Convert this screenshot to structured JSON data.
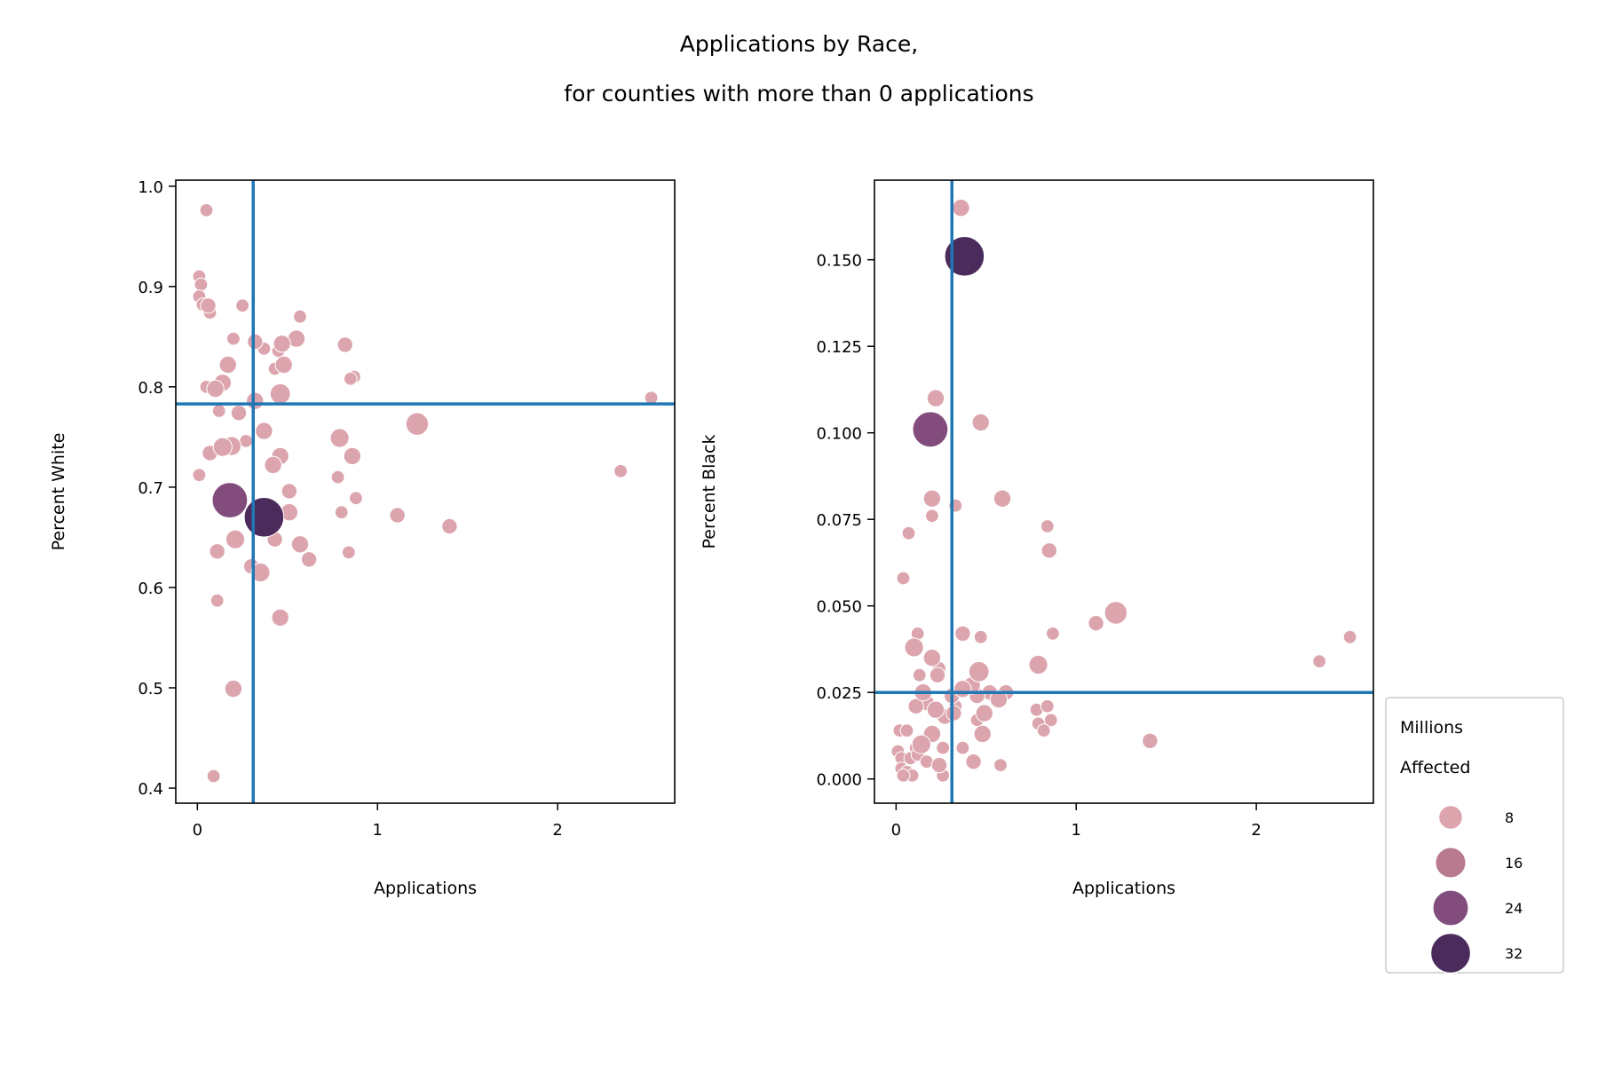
{
  "chart_data": {
    "title_lines": [
      "Applications by Race,",
      "for counties with more than 0 applications"
    ],
    "type": "scatter",
    "legend": {
      "title_lines": [
        "Millions",
        "Affected"
      ],
      "placement": "right",
      "items": [
        {
          "label": "8",
          "size": 8,
          "color": "#dca5ae"
        },
        {
          "label": "16",
          "size": 16,
          "color": "#b9798f"
        },
        {
          "label": "24",
          "size": 24,
          "color": "#824c7d"
        },
        {
          "label": "32",
          "size": 32,
          "color": "#4b2b5c"
        }
      ]
    },
    "panels": [
      {
        "xlabel": "Applications",
        "ylabel": "Percent White",
        "xlim": [
          -0.12,
          2.65
        ],
        "ylim": [
          0.385,
          1.006
        ],
        "xticks": [
          {
            "v": 0,
            "label": "0"
          },
          {
            "v": 1,
            "label": "1"
          },
          {
            "v": 2,
            "label": "2"
          }
        ],
        "yticks": [
          {
            "v": 0.4,
            "label": "0.4"
          },
          {
            "v": 0.5,
            "label": "0.5"
          },
          {
            "v": 0.6,
            "label": "0.6"
          },
          {
            "v": 0.7,
            "label": "0.7"
          },
          {
            "v": 0.8,
            "label": "0.8"
          },
          {
            "v": 0.9,
            "label": "0.9"
          },
          {
            "v": 1.0,
            "label": "1.0"
          }
        ],
        "vline": 0.31,
        "hline": 0.783,
        "line_color": "#1f77b4",
        "points": [
          {
            "x": 0.05,
            "y": 0.976,
            "s": 1
          },
          {
            "x": 0.01,
            "y": 0.91,
            "s": 1
          },
          {
            "x": 0.02,
            "y": 0.902,
            "s": 1
          },
          {
            "x": 0.01,
            "y": 0.89,
            "s": 1
          },
          {
            "x": 0.03,
            "y": 0.882,
            "s": 1
          },
          {
            "x": 0.06,
            "y": 0.881,
            "s": 2
          },
          {
            "x": 0.07,
            "y": 0.874,
            "s": 1
          },
          {
            "x": 0.25,
            "y": 0.881,
            "s": 1
          },
          {
            "x": 0.57,
            "y": 0.87,
            "s": 1
          },
          {
            "x": 0.55,
            "y": 0.848,
            "s": 3
          },
          {
            "x": 0.47,
            "y": 0.843,
            "s": 3
          },
          {
            "x": 0.32,
            "y": 0.845,
            "s": 2
          },
          {
            "x": 0.2,
            "y": 0.848,
            "s": 1
          },
          {
            "x": 0.82,
            "y": 0.842,
            "s": 2
          },
          {
            "x": 0.37,
            "y": 0.838,
            "s": 1
          },
          {
            "x": 0.45,
            "y": 0.836,
            "s": 1
          },
          {
            "x": 0.17,
            "y": 0.822,
            "s": 3
          },
          {
            "x": 0.48,
            "y": 0.822,
            "s": 3
          },
          {
            "x": 0.43,
            "y": 0.818,
            "s": 1
          },
          {
            "x": 0.87,
            "y": 0.81,
            "s": 1
          },
          {
            "x": 0.85,
            "y": 0.808,
            "s": 1
          },
          {
            "x": 0.14,
            "y": 0.804,
            "s": 3
          },
          {
            "x": 0.05,
            "y": 0.8,
            "s": 1
          },
          {
            "x": 0.1,
            "y": 0.798,
            "s": 3
          },
          {
            "x": 0.46,
            "y": 0.793,
            "s": 5
          },
          {
            "x": 0.32,
            "y": 0.786,
            "s": 3
          },
          {
            "x": 2.52,
            "y": 0.789,
            "s": 1
          },
          {
            "x": 0.12,
            "y": 0.776,
            "s": 1
          },
          {
            "x": 0.23,
            "y": 0.774,
            "s": 2
          },
          {
            "x": 0.37,
            "y": 0.756,
            "s": 3
          },
          {
            "x": 0.79,
            "y": 0.749,
            "s": 4
          },
          {
            "x": 1.22,
            "y": 0.763,
            "s": 7
          },
          {
            "x": 0.27,
            "y": 0.746,
            "s": 1
          },
          {
            "x": 0.19,
            "y": 0.741,
            "s": 4
          },
          {
            "x": 0.14,
            "y": 0.74,
            "s": 4
          },
          {
            "x": 0.07,
            "y": 0.734,
            "s": 2
          },
          {
            "x": 0.46,
            "y": 0.731,
            "s": 3
          },
          {
            "x": 0.86,
            "y": 0.731,
            "s": 3
          },
          {
            "x": 0.42,
            "y": 0.722,
            "s": 3
          },
          {
            "x": 0.01,
            "y": 0.712,
            "s": 1
          },
          {
            "x": 0.78,
            "y": 0.71,
            "s": 1
          },
          {
            "x": 0.51,
            "y": 0.696,
            "s": 2
          },
          {
            "x": 2.35,
            "y": 0.716,
            "s": 1
          },
          {
            "x": 0.88,
            "y": 0.689,
            "s": 1
          },
          {
            "x": 0.18,
            "y": 0.687,
            "s": 24
          },
          {
            "x": 0.37,
            "y": 0.67,
            "s": 32
          },
          {
            "x": 0.51,
            "y": 0.675,
            "s": 3
          },
          {
            "x": 0.8,
            "y": 0.675,
            "s": 1
          },
          {
            "x": 1.11,
            "y": 0.672,
            "s": 2
          },
          {
            "x": 1.4,
            "y": 0.661,
            "s": 2
          },
          {
            "x": 0.21,
            "y": 0.648,
            "s": 4
          },
          {
            "x": 0.11,
            "y": 0.636,
            "s": 2
          },
          {
            "x": 0.57,
            "y": 0.643,
            "s": 3
          },
          {
            "x": 0.84,
            "y": 0.635,
            "s": 1
          },
          {
            "x": 0.62,
            "y": 0.628,
            "s": 2
          },
          {
            "x": 0.3,
            "y": 0.621,
            "s": 2
          },
          {
            "x": 0.35,
            "y": 0.615,
            "s": 4
          },
          {
            "x": 0.43,
            "y": 0.648,
            "s": 2
          },
          {
            "x": 0.11,
            "y": 0.587,
            "s": 1
          },
          {
            "x": 0.46,
            "y": 0.57,
            "s": 3
          },
          {
            "x": 0.2,
            "y": 0.499,
            "s": 3
          },
          {
            "x": 0.09,
            "y": 0.412,
            "s": 1
          }
        ]
      },
      {
        "xlabel": "Applications",
        "ylabel": "Percent Black",
        "xlim": [
          -0.12,
          2.65
        ],
        "ylim": [
          -0.007,
          0.173
        ],
        "xticks": [
          {
            "v": 0,
            "label": "0"
          },
          {
            "v": 1,
            "label": "1"
          },
          {
            "v": 2,
            "label": "2"
          }
        ],
        "yticks": [
          {
            "v": 0.0,
            "label": "0.000"
          },
          {
            "v": 0.025,
            "label": "0.025"
          },
          {
            "v": 0.05,
            "label": "0.050"
          },
          {
            "v": 0.075,
            "label": "0.075"
          },
          {
            "v": 0.1,
            "label": "0.100"
          },
          {
            "v": 0.125,
            "label": "0.125"
          },
          {
            "v": 0.15,
            "label": "0.150"
          }
        ],
        "vline": 0.31,
        "hline": 0.025,
        "line_color": "#1f77b4",
        "points": [
          {
            "x": 0.36,
            "y": 0.165,
            "s": 3
          },
          {
            "x": 0.38,
            "y": 0.151,
            "s": 32
          },
          {
            "x": 0.19,
            "y": 0.101,
            "s": 24
          },
          {
            "x": 0.22,
            "y": 0.11,
            "s": 3
          },
          {
            "x": 0.47,
            "y": 0.103,
            "s": 3
          },
          {
            "x": 0.2,
            "y": 0.081,
            "s": 3
          },
          {
            "x": 0.59,
            "y": 0.081,
            "s": 3
          },
          {
            "x": 0.33,
            "y": 0.079,
            "s": 1
          },
          {
            "x": 0.2,
            "y": 0.076,
            "s": 1
          },
          {
            "x": 0.07,
            "y": 0.071,
            "s": 1
          },
          {
            "x": 0.84,
            "y": 0.073,
            "s": 1
          },
          {
            "x": 0.85,
            "y": 0.066,
            "s": 2
          },
          {
            "x": 0.04,
            "y": 0.058,
            "s": 1
          },
          {
            "x": 1.22,
            "y": 0.048,
            "s": 7
          },
          {
            "x": 1.11,
            "y": 0.045,
            "s": 2
          },
          {
            "x": 2.52,
            "y": 0.041,
            "s": 1
          },
          {
            "x": 0.87,
            "y": 0.042,
            "s": 1
          },
          {
            "x": 0.12,
            "y": 0.042,
            "s": 1
          },
          {
            "x": 0.37,
            "y": 0.042,
            "s": 2
          },
          {
            "x": 0.47,
            "y": 0.041,
            "s": 1
          },
          {
            "x": 0.1,
            "y": 0.038,
            "s": 4
          },
          {
            "x": 0.2,
            "y": 0.035,
            "s": 3
          },
          {
            "x": 2.35,
            "y": 0.034,
            "s": 1
          },
          {
            "x": 0.79,
            "y": 0.033,
            "s": 4
          },
          {
            "x": 0.46,
            "y": 0.031,
            "s": 5
          },
          {
            "x": 0.24,
            "y": 0.032,
            "s": 1
          },
          {
            "x": 0.23,
            "y": 0.03,
            "s": 2
          },
          {
            "x": 0.13,
            "y": 0.03,
            "s": 1
          },
          {
            "x": 0.42,
            "y": 0.027,
            "s": 3
          },
          {
            "x": 0.37,
            "y": 0.026,
            "s": 3
          },
          {
            "x": 0.15,
            "y": 0.025,
            "s": 3
          },
          {
            "x": 0.52,
            "y": 0.025,
            "s": 2
          },
          {
            "x": 0.61,
            "y": 0.025,
            "s": 2
          },
          {
            "x": 0.31,
            "y": 0.024,
            "s": 2
          },
          {
            "x": 0.45,
            "y": 0.024,
            "s": 2
          },
          {
            "x": 0.57,
            "y": 0.023,
            "s": 3
          },
          {
            "x": 0.17,
            "y": 0.022,
            "s": 2
          },
          {
            "x": 0.11,
            "y": 0.021,
            "s": 2
          },
          {
            "x": 0.33,
            "y": 0.021,
            "s": 1
          },
          {
            "x": 0.22,
            "y": 0.02,
            "s": 3
          },
          {
            "x": 0.49,
            "y": 0.019,
            "s": 3
          },
          {
            "x": 0.78,
            "y": 0.02,
            "s": 1
          },
          {
            "x": 0.84,
            "y": 0.021,
            "s": 1
          },
          {
            "x": 0.27,
            "y": 0.018,
            "s": 2
          },
          {
            "x": 0.32,
            "y": 0.019,
            "s": 2
          },
          {
            "x": 0.86,
            "y": 0.017,
            "s": 1
          },
          {
            "x": 0.45,
            "y": 0.017,
            "s": 1
          },
          {
            "x": 0.79,
            "y": 0.016,
            "s": 1
          },
          {
            "x": 0.82,
            "y": 0.014,
            "s": 1
          },
          {
            "x": 0.02,
            "y": 0.014,
            "s": 1
          },
          {
            "x": 0.06,
            "y": 0.014,
            "s": 1
          },
          {
            "x": 0.2,
            "y": 0.013,
            "s": 3
          },
          {
            "x": 0.48,
            "y": 0.013,
            "s": 3
          },
          {
            "x": 1.41,
            "y": 0.011,
            "s": 2
          },
          {
            "x": 0.14,
            "y": 0.01,
            "s": 4
          },
          {
            "x": 0.11,
            "y": 0.009,
            "s": 1
          },
          {
            "x": 0.26,
            "y": 0.009,
            "s": 1
          },
          {
            "x": 0.37,
            "y": 0.009,
            "s": 1
          },
          {
            "x": 0.01,
            "y": 0.008,
            "s": 1
          },
          {
            "x": 0.03,
            "y": 0.006,
            "s": 1
          },
          {
            "x": 0.08,
            "y": 0.006,
            "s": 1
          },
          {
            "x": 0.12,
            "y": 0.007,
            "s": 1
          },
          {
            "x": 0.43,
            "y": 0.005,
            "s": 2
          },
          {
            "x": 0.17,
            "y": 0.005,
            "s": 1
          },
          {
            "x": 0.24,
            "y": 0.004,
            "s": 2
          },
          {
            "x": 0.58,
            "y": 0.004,
            "s": 1
          },
          {
            "x": 0.03,
            "y": 0.003,
            "s": 1
          },
          {
            "x": 0.06,
            "y": 0.002,
            "s": 1
          },
          {
            "x": 0.09,
            "y": 0.001,
            "s": 1
          },
          {
            "x": 0.26,
            "y": 0.001,
            "s": 1
          },
          {
            "x": 0.04,
            "y": 0.001,
            "s": 1
          }
        ]
      }
    ]
  }
}
